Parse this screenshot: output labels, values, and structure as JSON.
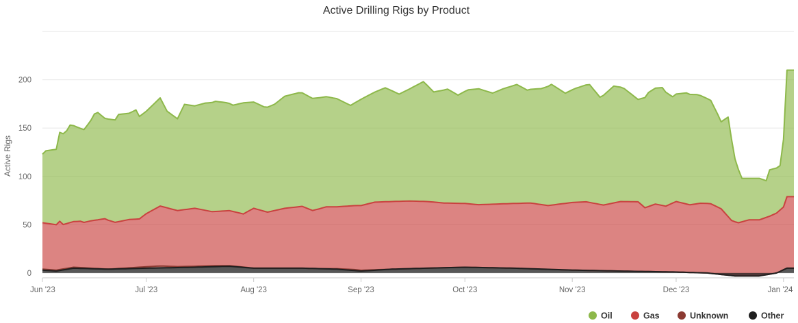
{
  "chart_data": {
    "type": "area",
    "stacked": true,
    "title": "Active Drilling Rigs by Product",
    "xlabel": "",
    "ylabel": "Active Rigs",
    "ylim": [
      -5,
      250
    ],
    "yticks": [
      0,
      50,
      100,
      150,
      200
    ],
    "grid": true,
    "legend_position": "bottom-right",
    "x_ticks": [
      "Jun '23",
      "Jul '23",
      "Aug '23",
      "Sep '23",
      "Oct '23",
      "Nov '23",
      "Dec '23",
      "Jan '24"
    ],
    "x_start": "2023-06-01",
    "x_end": "2024-01-04",
    "colors": {
      "Oil": "#8db84a",
      "Gas": "#c9423f",
      "Unknown": "#8b3a32",
      "Other": "#1f1f1f"
    },
    "series": [
      {
        "name": "Oil",
        "values": [
          [
            "2023-06-01",
            71
          ],
          [
            "2023-06-02",
            75
          ],
          [
            "2023-06-05",
            78
          ],
          [
            "2023-06-06",
            92
          ],
          [
            "2023-06-08",
            96
          ],
          [
            "2023-06-09",
            101
          ],
          [
            "2023-06-12",
            96
          ],
          [
            "2023-06-13",
            96
          ],
          [
            "2023-06-15",
            104
          ],
          [
            "2023-06-16",
            110
          ],
          [
            "2023-06-17",
            111
          ],
          [
            "2023-06-19",
            104
          ],
          [
            "2023-06-22",
            106
          ],
          [
            "2023-06-23",
            111
          ],
          [
            "2023-06-26",
            110
          ],
          [
            "2023-06-28",
            113
          ],
          [
            "2023-06-29",
            106
          ],
          [
            "2023-07-01",
            106
          ],
          [
            "2023-07-05",
            112
          ],
          [
            "2023-07-07",
            100
          ],
          [
            "2023-07-10",
            95
          ],
          [
            "2023-07-12",
            109
          ],
          [
            "2023-07-15",
            106
          ],
          [
            "2023-07-18",
            111
          ],
          [
            "2023-07-21",
            114
          ],
          [
            "2023-07-24",
            112
          ],
          [
            "2023-07-26",
            110
          ],
          [
            "2023-07-29",
            115
          ],
          [
            "2023-08-01",
            110
          ],
          [
            "2023-08-04",
            108
          ],
          [
            "2023-08-07",
            110
          ],
          [
            "2023-08-10",
            116
          ],
          [
            "2023-08-14",
            118
          ],
          [
            "2023-08-18",
            116
          ],
          [
            "2023-08-22",
            114
          ],
          [
            "2023-08-25",
            112
          ],
          [
            "2023-08-29",
            104
          ],
          [
            "2023-09-01",
            110
          ],
          [
            "2023-09-05",
            114
          ],
          [
            "2023-09-08",
            118
          ],
          [
            "2023-09-12",
            111
          ],
          [
            "2023-09-15",
            116
          ],
          [
            "2023-09-19",
            124
          ],
          [
            "2023-09-22",
            114
          ],
          [
            "2023-09-26",
            118
          ],
          [
            "2023-09-29",
            112
          ],
          [
            "2023-10-02",
            118
          ],
          [
            "2023-10-05",
            120
          ],
          [
            "2023-10-09",
            115
          ],
          [
            "2023-10-12",
            119
          ],
          [
            "2023-10-16",
            123
          ],
          [
            "2023-10-19",
            117
          ],
          [
            "2023-10-23",
            120
          ],
          [
            "2023-10-26",
            125
          ],
          [
            "2023-10-30",
            114
          ],
          [
            "2023-11-02",
            118
          ],
          [
            "2023-11-06",
            122
          ],
          [
            "2023-11-09",
            111
          ],
          [
            "2023-11-13",
            121
          ],
          [
            "2023-11-16",
            117
          ],
          [
            "2023-11-20",
            106
          ],
          [
            "2023-11-23",
            118
          ],
          [
            "2023-11-27",
            122
          ],
          [
            "2023-11-30",
            110
          ],
          [
            "2023-12-04",
            115
          ],
          [
            "2023-12-07",
            113
          ],
          [
            "2023-12-11",
            107
          ],
          [
            "2023-12-13",
            96
          ],
          [
            "2023-12-14",
            90
          ],
          [
            "2023-12-16",
            103
          ],
          [
            "2023-12-18",
            65
          ],
          [
            "2023-12-20",
            45
          ],
          [
            "2023-12-22",
            43
          ],
          [
            "2023-12-25",
            43
          ],
          [
            "2023-12-27",
            38
          ],
          [
            "2023-12-28",
            48
          ],
          [
            "2023-12-31",
            46
          ],
          [
            "2024-01-01",
            70
          ],
          [
            "2024-01-02",
            131
          ],
          [
            "2024-01-04",
            131
          ]
        ]
      },
      {
        "name": "Gas",
        "values": [
          [
            "2023-06-01",
            48
          ],
          [
            "2023-06-05",
            47
          ],
          [
            "2023-06-06",
            50
          ],
          [
            "2023-06-07",
            46
          ],
          [
            "2023-06-12",
            48
          ],
          [
            "2023-06-13",
            47
          ],
          [
            "2023-06-15",
            49
          ],
          [
            "2023-06-19",
            52
          ],
          [
            "2023-06-22",
            48
          ],
          [
            "2023-06-26",
            50
          ],
          [
            "2023-06-29",
            50
          ],
          [
            "2023-07-01",
            55
          ],
          [
            "2023-07-05",
            62
          ],
          [
            "2023-07-10",
            58
          ],
          [
            "2023-07-15",
            60
          ],
          [
            "2023-07-20",
            56
          ],
          [
            "2023-07-25",
            57
          ],
          [
            "2023-07-29",
            55
          ],
          [
            "2023-08-01",
            62
          ],
          [
            "2023-08-05",
            58
          ],
          [
            "2023-08-10",
            62
          ],
          [
            "2023-08-15",
            64
          ],
          [
            "2023-08-18",
            60
          ],
          [
            "2023-08-22",
            64
          ],
          [
            "2023-08-25",
            64
          ],
          [
            "2023-09-01",
            67
          ],
          [
            "2023-09-05",
            70
          ],
          [
            "2023-09-10",
            70
          ],
          [
            "2023-09-15",
            70
          ],
          [
            "2023-09-20",
            69
          ],
          [
            "2023-09-25",
            67
          ],
          [
            "2023-10-01",
            66
          ],
          [
            "2023-10-05",
            65
          ],
          [
            "2023-10-10",
            66
          ],
          [
            "2023-10-15",
            67
          ],
          [
            "2023-10-20",
            68
          ],
          [
            "2023-10-25",
            66
          ],
          [
            "2023-11-01",
            70
          ],
          [
            "2023-11-05",
            71
          ],
          [
            "2023-11-10",
            68
          ],
          [
            "2023-11-15",
            72
          ],
          [
            "2023-11-20",
            72
          ],
          [
            "2023-11-22",
            66
          ],
          [
            "2023-11-25",
            70
          ],
          [
            "2023-11-28",
            68
          ],
          [
            "2023-12-01",
            73
          ],
          [
            "2023-12-05",
            70
          ],
          [
            "2023-12-08",
            72
          ],
          [
            "2023-12-11",
            72
          ],
          [
            "2023-12-14",
            68
          ],
          [
            "2023-12-17",
            57
          ],
          [
            "2023-12-19",
            55
          ],
          [
            "2023-12-22",
            58
          ],
          [
            "2023-12-25",
            58
          ],
          [
            "2023-12-28",
            60
          ],
          [
            "2023-12-30",
            62
          ],
          [
            "2024-01-01",
            65
          ],
          [
            "2024-01-02",
            74
          ],
          [
            "2024-01-04",
            74
          ]
        ]
      },
      {
        "name": "Unknown",
        "values": [
          [
            "2023-06-01",
            1
          ],
          [
            "2023-06-10",
            1
          ],
          [
            "2023-06-20",
            0
          ],
          [
            "2023-07-05",
            2
          ],
          [
            "2023-07-10",
            1
          ],
          [
            "2023-07-20",
            1
          ],
          [
            "2023-08-01",
            0
          ],
          [
            "2023-08-20",
            0
          ],
          [
            "2023-08-30",
            1
          ],
          [
            "2023-09-10",
            0
          ],
          [
            "2023-10-01",
            0
          ],
          [
            "2023-11-01",
            0
          ],
          [
            "2023-12-01",
            0
          ],
          [
            "2024-01-04",
            0
          ]
        ]
      },
      {
        "name": "Other",
        "values": [
          [
            "2023-06-01",
            3
          ],
          [
            "2023-06-05",
            2
          ],
          [
            "2023-06-10",
            5
          ],
          [
            "2023-06-20",
            4
          ],
          [
            "2023-07-01",
            5
          ],
          [
            "2023-07-15",
            6
          ],
          [
            "2023-07-25",
            7
          ],
          [
            "2023-08-01",
            5
          ],
          [
            "2023-08-15",
            5
          ],
          [
            "2023-08-25",
            4
          ],
          [
            "2023-09-01",
            2
          ],
          [
            "2023-09-10",
            4
          ],
          [
            "2023-09-20",
            5
          ],
          [
            "2023-10-01",
            6
          ],
          [
            "2023-10-15",
            5
          ],
          [
            "2023-11-01",
            3
          ],
          [
            "2023-11-15",
            2
          ],
          [
            "2023-12-01",
            1
          ],
          [
            "2023-12-10",
            0
          ],
          [
            "2023-12-18",
            -3
          ],
          [
            "2023-12-25",
            -3
          ],
          [
            "2023-12-30",
            0
          ],
          [
            "2024-01-02",
            5
          ],
          [
            "2024-01-04",
            5
          ]
        ]
      }
    ]
  }
}
